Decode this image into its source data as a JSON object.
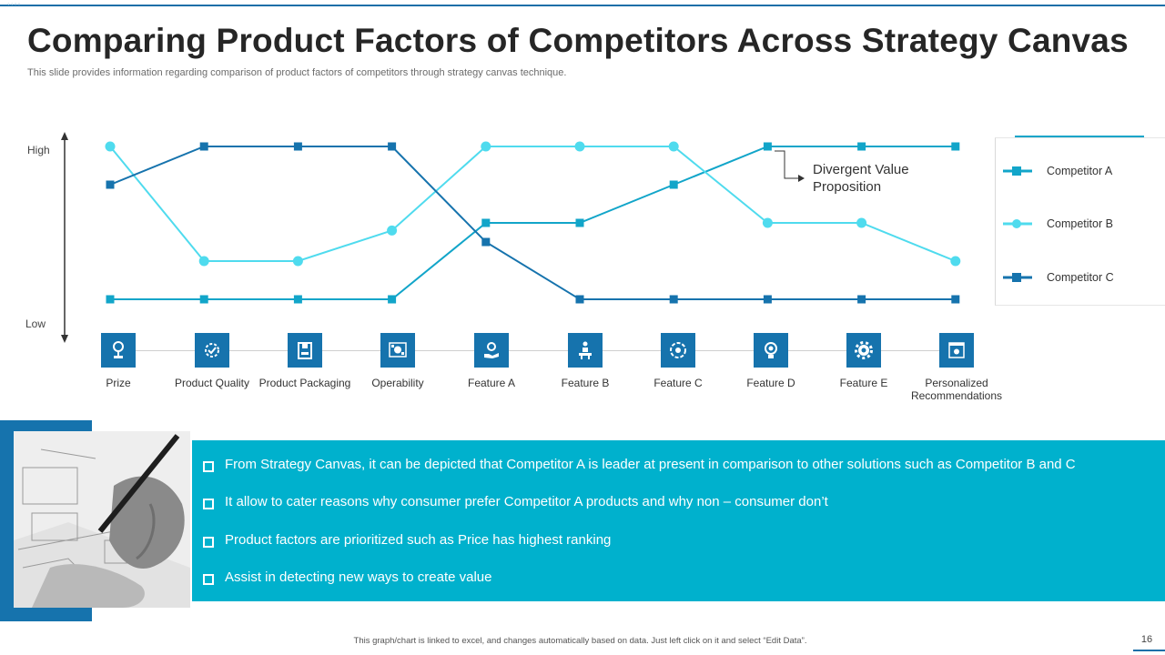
{
  "header": {
    "title": "Comparing Product Factors of Competitors Across Strategy Canvas",
    "subtitle": "This slide provides information regarding comparison of product factors of competitors through strategy canvas technique."
  },
  "axis": {
    "high_label": "High",
    "low_label": "Low"
  },
  "annotation": {
    "line1": "Divergent Value",
    "line2": "Proposition"
  },
  "factors": [
    {
      "label": "Prize",
      "icon": "trophy-icon"
    },
    {
      "label": "Product Quality",
      "icon": "gear-check-icon"
    },
    {
      "label": "Product Packaging",
      "icon": "package-icon"
    },
    {
      "label": "Operability",
      "icon": "operability-icon"
    },
    {
      "label": "Feature A",
      "icon": "hand-dollar-icon"
    },
    {
      "label": "Feature B",
      "icon": "presentation-icon"
    },
    {
      "label": "Feature C",
      "icon": "cog-arrows-icon"
    },
    {
      "label": "Feature D",
      "icon": "bulb-gear-icon"
    },
    {
      "label": "Feature E",
      "icon": "gear-icon"
    },
    {
      "label": "Personalized Recommendations",
      "icon": "settings-window-icon"
    }
  ],
  "bullets": [
    "From Strategy Canvas, it can be depicted that Competitor A is leader at present in comparison to other solutions such as Competitor B and C",
    "It allow to cater reasons why consumer prefer Competitor A products and why non – consumer don’t",
    "Product factors are prioritized such as Price has highest ranking",
    "Assist in detecting new ways to create value"
  ],
  "footer": {
    "note": "This graph/chart is linked to excel, and changes automatically based on data. Just left click on it and select “Edit Data”.",
    "page_number": "16"
  },
  "colors": {
    "competitor_a": "#12a5c9",
    "competitor_b": "#4fdbee",
    "competitor_c": "#1673ad",
    "panel": "#00b1cd",
    "accent": "#1673ad"
  },
  "chart_data": {
    "type": "line",
    "title": "Strategy Canvas",
    "categories": [
      "Prize",
      "Product Quality",
      "Product Packaging",
      "Operability",
      "Feature A",
      "Feature B",
      "Feature C",
      "Feature D",
      "Feature E",
      "Personalized Recommendations"
    ],
    "ylim": [
      0,
      4
    ],
    "ylabel_high": "High",
    "ylabel_low": "Low",
    "series": [
      {
        "name": "Competitor A",
        "marker": "square",
        "values": [
          0,
          0,
          0,
          0,
          2,
          2,
          3,
          4,
          4,
          4
        ]
      },
      {
        "name": "Competitor B",
        "marker": "circle",
        "values": [
          4,
          1,
          1,
          1.8,
          4,
          4,
          4,
          2,
          2,
          1
        ]
      },
      {
        "name": "Competitor C",
        "marker": "square",
        "values": [
          3,
          4,
          4,
          4,
          1.5,
          0,
          0,
          0,
          0,
          0
        ]
      }
    ],
    "annotation": "Divergent Value Proposition"
  }
}
